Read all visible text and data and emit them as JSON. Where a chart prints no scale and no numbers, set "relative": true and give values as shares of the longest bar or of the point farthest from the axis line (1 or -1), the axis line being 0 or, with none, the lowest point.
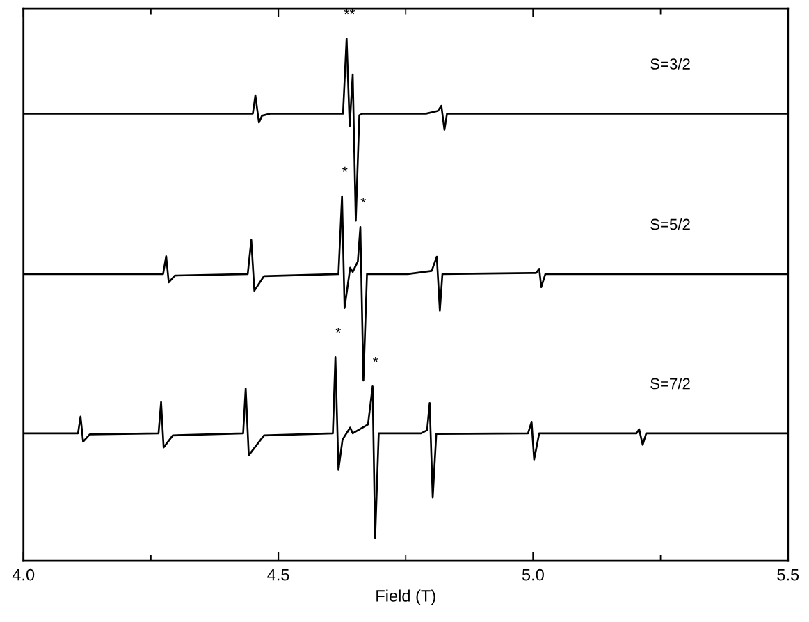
{
  "chart_data": {
    "type": "line",
    "relative": true,
    "xlabel": "Field (T)",
    "xlim": [
      4.0,
      5.5
    ],
    "xticks": [
      {
        "value": 4.0,
        "label": "4.0"
      },
      {
        "value": 4.25,
        "label": null
      },
      4.5,
      {
        "value": 4.75,
        "label": null
      },
      {
        "value": 5.0,
        "label": "5.0"
      },
      {
        "value": 5.25,
        "label": null
      },
      5.5
    ],
    "grid": false,
    "legend": false,
    "tick_labels": "x",
    "series": [
      {
        "name": "S=3/2",
        "color": "#000000",
        "x": [
          4.0,
          4.45,
          4.455,
          4.462,
          4.468,
          4.485,
          4.627,
          4.634,
          4.64,
          4.646,
          4.652,
          4.659,
          4.665,
          4.79,
          4.813,
          4.82,
          4.826,
          4.831,
          5.5
        ],
        "values": [
          0.856,
          0.856,
          0.891,
          0.839,
          0.852,
          0.856,
          0.856,
          1.0,
          0.832,
          0.931,
          0.651,
          0.853,
          0.856,
          0.856,
          0.861,
          0.871,
          0.825,
          0.856,
          0.856
        ]
      },
      {
        "name": "S=5/2",
        "color": "#000000",
        "x": [
          4.0,
          4.274,
          4.28,
          4.285,
          4.297,
          4.44,
          4.447,
          4.453,
          4.472,
          4.618,
          4.625,
          4.63,
          4.641,
          4.646,
          4.656,
          4.661,
          4.667,
          4.674,
          4.754,
          4.801,
          4.811,
          4.817,
          4.822,
          5.006,
          5.012,
          5.016,
          5.024,
          5.5
        ],
        "values": [
          0.549,
          0.549,
          0.583,
          0.533,
          0.546,
          0.549,
          0.614,
          0.517,
          0.545,
          0.549,
          0.698,
          0.484,
          0.561,
          0.553,
          0.573,
          0.639,
          0.345,
          0.549,
          0.549,
          0.555,
          0.582,
          0.479,
          0.549,
          0.551,
          0.559,
          0.524,
          0.549,
          0.549
        ]
      },
      {
        "name": "S=7/2",
        "color": "#000000",
        "x": [
          4.0,
          4.107,
          4.112,
          4.117,
          4.13,
          4.265,
          4.27,
          4.275,
          4.293,
          4.431,
          4.436,
          4.442,
          4.472,
          4.607,
          4.612,
          4.618,
          4.626,
          4.641,
          4.646,
          4.676,
          4.685,
          4.69,
          4.697,
          4.78,
          4.792,
          4.797,
          4.803,
          4.81,
          4.99,
          4.997,
          5.002,
          5.012,
          5.203,
          5.208,
          5.215,
          5.222,
          5.5
        ],
        "values": [
          0.244,
          0.244,
          0.276,
          0.228,
          0.242,
          0.244,
          0.304,
          0.217,
          0.24,
          0.244,
          0.33,
          0.202,
          0.24,
          0.244,
          0.39,
          0.174,
          0.232,
          0.255,
          0.244,
          0.261,
          0.334,
          0.044,
          0.244,
          0.244,
          0.25,
          0.302,
          0.121,
          0.243,
          0.244,
          0.266,
          0.194,
          0.244,
          0.244,
          0.252,
          0.222,
          0.244,
          0.244
        ]
      }
    ],
    "annotations": [
      {
        "text": "**",
        "x": 4.634,
        "y": 1.0
      },
      {
        "text": "*",
        "x": 4.625,
        "y": 0.698
      },
      {
        "text": "*",
        "x": 4.661,
        "y": 0.639
      },
      {
        "text": "*",
        "x": 4.612,
        "y": 0.39
      },
      {
        "text": "*",
        "x": 4.685,
        "y": 0.334
      }
    ]
  }
}
